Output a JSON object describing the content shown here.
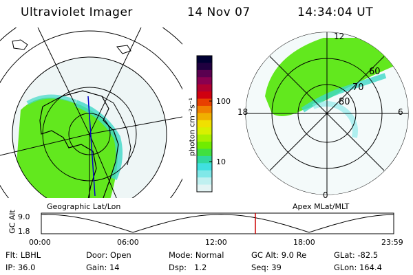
{
  "header": {
    "instrument": "Ultraviolet Imager",
    "date": "14 Nov 07",
    "time": "14:34:04 UT"
  },
  "colorbar": {
    "label": "photon cm⁻²s⁻¹",
    "ticks": [
      "100",
      "10"
    ],
    "colors": [
      "#000033",
      "#200040",
      "#5a0050",
      "#8a0050",
      "#b00030",
      "#d00010",
      "#e84000",
      "#f08000",
      "#f0b000",
      "#f0e000",
      "#d8f000",
      "#a8f000",
      "#70ec00",
      "#40e040",
      "#30d8a0",
      "#40e0e0",
      "#80e8e8",
      "#c0f0f0",
      "#e4f4f4"
    ]
  },
  "maps": {
    "left_caption": "Geographic Lat/Lon",
    "right_caption": "Apex MLat/MLT",
    "mlt_labels": {
      "top": "12",
      "left": "18",
      "right": "6",
      "bottom": "0"
    },
    "mlat_labels": [
      "60",
      "70",
      "80"
    ],
    "aurora_color": "#62e81e",
    "aurora_edge_color": "#3ed8c8"
  },
  "timeline": {
    "ylabel": "GC Alt",
    "y_ticks": [
      "9.0",
      "1.8"
    ],
    "x_ticks": [
      "00:00",
      "06:00",
      "12:00",
      "18:00",
      "23:59"
    ],
    "current_marker_color": "#cc0000",
    "current_time": "14:34:04"
  },
  "info": {
    "row1": [
      {
        "label": "Flt:",
        "value": "LBHL"
      },
      {
        "label": "Door:",
        "value": "Open"
      },
      {
        "label": "Mode:",
        "value": "Normal"
      },
      {
        "label": "GC Alt:",
        "value": "9.0 Re"
      },
      {
        "label": "GLat:",
        "value": "-82.5"
      }
    ],
    "row2": [
      {
        "label": "IP:",
        "value": "36.0"
      },
      {
        "label": "Gain:",
        "value": "14"
      },
      {
        "label": "Dsp:",
        "value": "1.2"
      },
      {
        "label": "Seq:",
        "value": "39"
      },
      {
        "label": "GLon:",
        "value": "164.4"
      }
    ]
  }
}
